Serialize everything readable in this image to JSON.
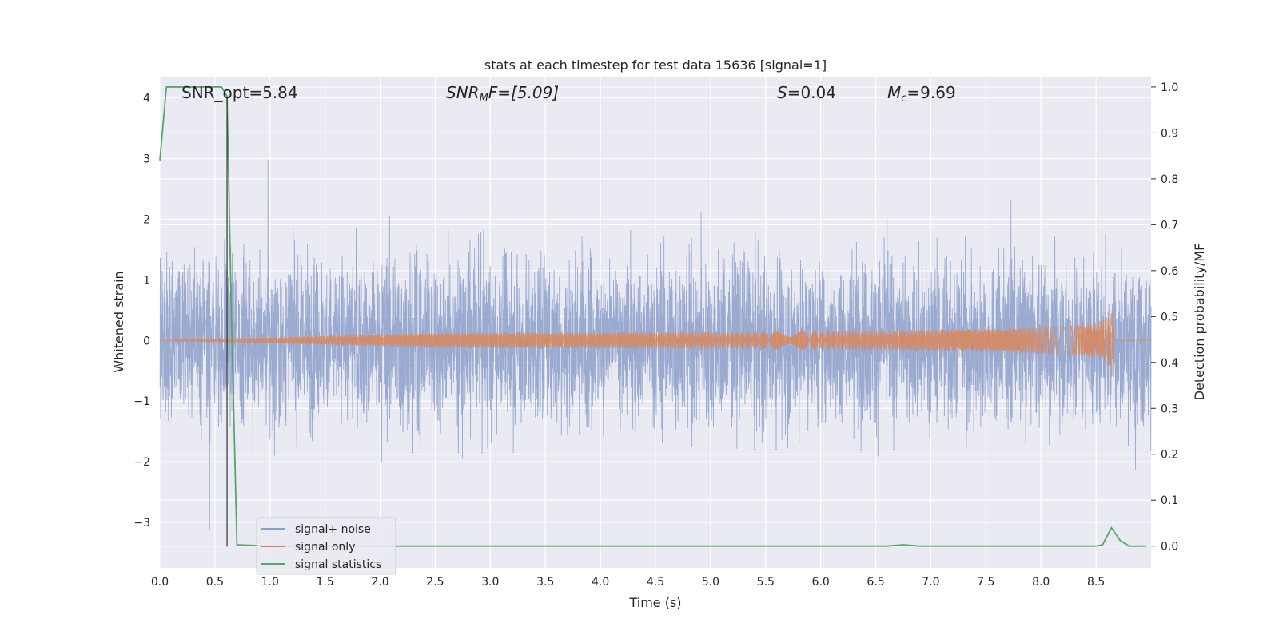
{
  "chart_data": {
    "type": "line",
    "title": "stats at each timestep for test data 15636 [signal=1]",
    "xlabel": "Time (s)",
    "ylabel_left": "Whitened strain",
    "ylabel_right": "Detection probability/MF",
    "xlim": [
      0.0,
      9.0
    ],
    "ylim_left": [
      -3.75,
      4.35
    ],
    "ylim_right": [
      -0.0475,
      1.0225
    ],
    "x_ticks": [
      "0.0",
      "0.5",
      "1.0",
      "1.5",
      "2.0",
      "2.5",
      "3.0",
      "3.5",
      "4.0",
      "4.5",
      "5.0",
      "5.5",
      "6.0",
      "6.5",
      "7.0",
      "7.5",
      "8.0",
      "8.5"
    ],
    "y_left_ticks": [
      "4",
      "3",
      "2",
      "1",
      "0",
      "−1",
      "−2",
      "−3"
    ],
    "y_right_ticks": [
      "1.0",
      "0.9",
      "0.8",
      "0.7",
      "0.6",
      "0.5",
      "0.4",
      "0.3",
      "0.2",
      "0.1",
      "0.0"
    ],
    "grid": true,
    "legend_position": "lower-left",
    "annotations": {
      "snr_opt": "SNR_opt=5.84",
      "snr_mf_label": "SNR",
      "snr_mf_sub": "M",
      "snr_mf_rest": "F=[5.09]",
      "s_label": "S",
      "s_rest": "=0.04",
      "mc_label": "M",
      "mc_sub": "c",
      "mc_rest": "=9.69"
    },
    "marker_x": 0.61,
    "series": [
      {
        "name": "signal+ noise",
        "color": "#8c9fca",
        "style": "dense-noise",
        "range": [
          -3.4,
          4.0
        ],
        "typical_spread": 1.9
      },
      {
        "name": "signal only",
        "color": "#dd8452",
        "style": "chirp",
        "t_merger": 8.66,
        "peak_amplitude": 0.7
      },
      {
        "name": "signal statistics",
        "color": "#55a868",
        "axis": "right",
        "x": [
          0.0,
          0.06,
          0.1,
          0.5,
          0.56,
          0.61,
          0.65,
          0.7,
          1.0,
          6.6,
          6.75,
          6.9,
          8.5,
          8.56,
          8.64,
          8.72,
          8.8,
          8.95
        ],
        "values": [
          0.84,
          1.0,
          1.0,
          1.0,
          1.0,
          0.98,
          0.5,
          0.003,
          0.0,
          0.0,
          0.003,
          0.0,
          0.0,
          0.003,
          0.04,
          0.012,
          0.0,
          0.0
        ]
      }
    ]
  }
}
